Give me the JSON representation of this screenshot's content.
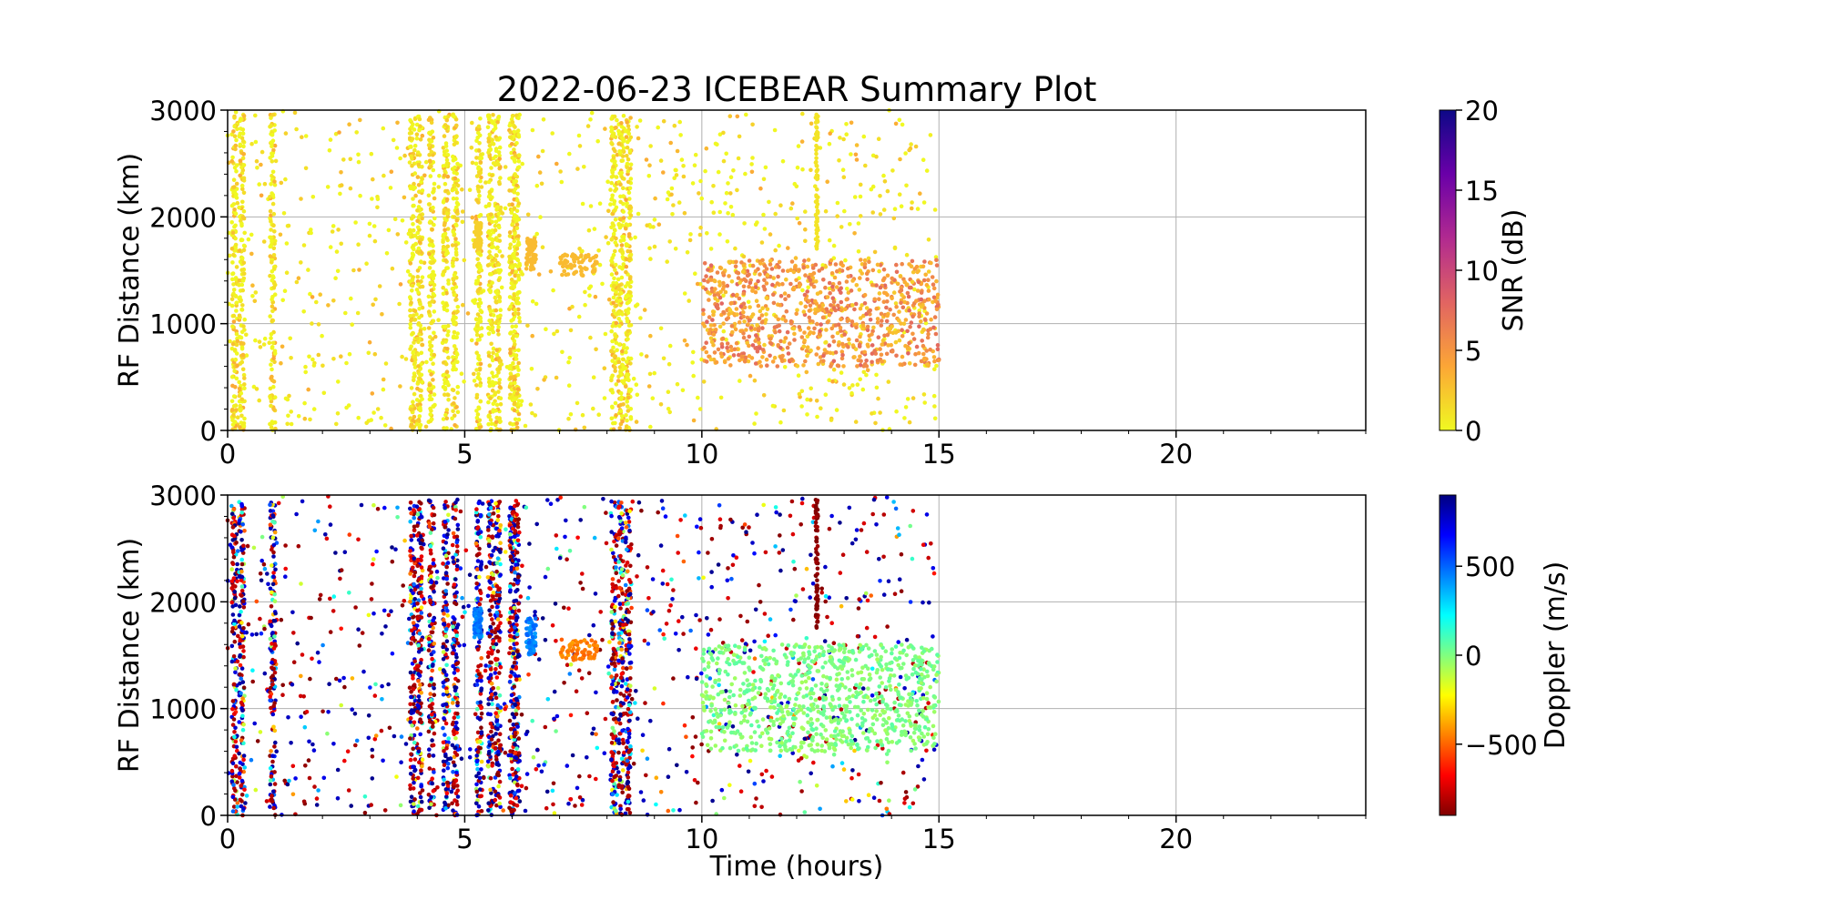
{
  "figure": {
    "title": "2022-06-23 ICEBEAR Summary Plot",
    "xlabel": "Time (hours)"
  },
  "chart_data": [
    {
      "type": "scatter",
      "panel": "top",
      "ylabel": "RF Distance (km)",
      "xlim": [
        0,
        24
      ],
      "ylim": [
        0,
        3000
      ],
      "x_ticks": [
        0,
        5,
        10,
        15,
        20
      ],
      "y_ticks": [
        0,
        1000,
        2000,
        3000
      ],
      "grid": true,
      "data_extent_hours": [
        0,
        15
      ],
      "color_variable": "SNR",
      "colorbar": {
        "label": "SNR (dB)",
        "range": [
          0,
          20
        ],
        "ticks": [
          0,
          5,
          10,
          15,
          20
        ],
        "colormap": "plasma_r",
        "stops": [
          "#f0f921",
          "#fca636",
          "#e16462",
          "#b12a90",
          "#6a00a8",
          "#0d0887"
        ]
      },
      "dense_columns_hours": [
        0.15,
        0.3,
        0.95,
        3.9,
        4.05,
        4.3,
        4.6,
        4.8,
        5.3,
        5.55,
        5.7,
        6.0,
        6.1,
        8.15,
        8.3,
        8.45
      ],
      "features": [
        {
          "x": [
            5.2,
            5.35
          ],
          "y": [
            1700,
            1950
          ],
          "snr": 2
        },
        {
          "x": [
            6.3,
            6.5
          ],
          "y": [
            1500,
            1800
          ],
          "snr": 3
        },
        {
          "x": [
            7.0,
            7.8
          ],
          "y": [
            1450,
            1650
          ],
          "snr": 3
        },
        {
          "x": [
            12.4,
            12.45
          ],
          "y": [
            1700,
            3000
          ],
          "snr": 1
        },
        {
          "x": [
            10.0,
            15.0
          ],
          "y": [
            600,
            1600
          ],
          "snr": 5
        }
      ]
    },
    {
      "type": "scatter",
      "panel": "bottom",
      "ylabel": "RF Distance (km)",
      "xlim": [
        0,
        24
      ],
      "ylim": [
        0,
        3000
      ],
      "x_ticks": [
        0,
        5,
        10,
        15,
        20
      ],
      "y_ticks": [
        0,
        1000,
        2000,
        3000
      ],
      "grid": true,
      "data_extent_hours": [
        0,
        15
      ],
      "color_variable": "Doppler",
      "colorbar": {
        "label": "Doppler (m/s)",
        "range": [
          -900,
          900
        ],
        "ticks": [
          -500,
          0,
          500
        ],
        "tick_labels": [
          "−500",
          "0",
          "500"
        ],
        "colormap": "jet_r",
        "stops": [
          "#800000",
          "#ff0000",
          "#ff8000",
          "#ffff00",
          "#80ff80",
          "#00ffff",
          "#0080ff",
          "#0000ff",
          "#000080"
        ]
      },
      "dense_columns_hours": [
        0.15,
        0.3,
        0.95,
        3.9,
        4.05,
        4.3,
        4.6,
        4.8,
        5.3,
        5.55,
        5.7,
        6.0,
        6.1,
        8.15,
        8.3,
        8.45
      ],
      "features": [
        {
          "x": [
            5.2,
            5.35
          ],
          "y": [
            1650,
            1950
          ],
          "doppler": 450
        },
        {
          "x": [
            6.3,
            6.5
          ],
          "y": [
            1500,
            1850
          ],
          "doppler": 450
        },
        {
          "x": [
            7.0,
            7.8
          ],
          "y": [
            1450,
            1650
          ],
          "doppler": -450
        },
        {
          "x": [
            12.4,
            12.45
          ],
          "y": [
            1700,
            3000
          ],
          "doppler": -900
        },
        {
          "x": [
            10.0,
            15.0
          ],
          "y": [
            600,
            1600
          ],
          "doppler": 0
        }
      ]
    }
  ]
}
